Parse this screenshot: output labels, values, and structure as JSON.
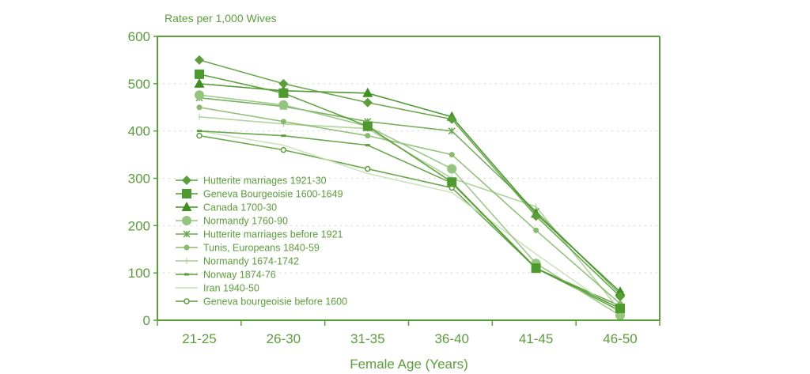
{
  "chart_data": {
    "type": "line",
    "title": "",
    "ylabel": "Rates per 1,000 Wives",
    "xlabel": "Female Age (Years)",
    "categories": [
      "21-25",
      "26-30",
      "31-35",
      "36-40",
      "41-45",
      "46-50"
    ],
    "ylim": [
      0,
      600
    ],
    "yticks": [
      "0",
      "100",
      "200",
      "300",
      "400",
      "500",
      "600"
    ],
    "grid": "horizontal dotted",
    "legend_position": "lower-left",
    "colors": {
      "axis": "#5a9e3a",
      "text": "#5a9e3a",
      "grid": "#d4d4d4"
    },
    "series": [
      {
        "name": "Hutterite marriages 1921-30",
        "marker": "diamond",
        "color": "#5a9e3a",
        "values": [
          550,
          500,
          460,
          425,
          220,
          50
        ]
      },
      {
        "name": "Geneva Bourgeoisie 1600-1649",
        "marker": "square",
        "color": "#4f9a2e",
        "values": [
          520,
          480,
          410,
          292,
          110,
          25
        ]
      },
      {
        "name": "Canada 1700-30",
        "marker": "triangle",
        "color": "#3d8f1f",
        "values": [
          500,
          485,
          480,
          430,
          225,
          60
        ]
      },
      {
        "name": "Normandy 1760-90",
        "marker": "circle-large",
        "color": "#94c47e",
        "values": [
          476,
          455,
          410,
          320,
          120,
          10
        ]
      },
      {
        "name": "Hutterite marriages before 1921",
        "marker": "asterisk",
        "color": "#6aa84f",
        "values": [
          470,
          452,
          420,
          400,
          230,
          55
        ]
      },
      {
        "name": "Tunis, Europeans 1840-59",
        "marker": "circle-small",
        "color": "#86bb6c",
        "values": [
          450,
          420,
          390,
          350,
          190,
          35
        ]
      },
      {
        "name": "Normandy 1674-1742",
        "marker": "plus",
        "color": "#a7cf93",
        "values": [
          430,
          415,
          405,
          300,
          240,
          20
        ]
      },
      {
        "name": "Norway 1874-76",
        "marker": "dash",
        "color": "#5a9e3a",
        "values": [
          400,
          390,
          370,
          290,
          110,
          20
        ]
      },
      {
        "name": "Iran 1940-50",
        "marker": "line",
        "color": "#c4e0b4",
        "values": [
          400,
          370,
          310,
          270,
          140,
          15
        ]
      },
      {
        "name": "Geneva bourgeoisie before 1600",
        "marker": "circle-open",
        "color": "#5a9e3a",
        "values": [
          390,
          360,
          320,
          280,
          110,
          30
        ]
      }
    ]
  }
}
